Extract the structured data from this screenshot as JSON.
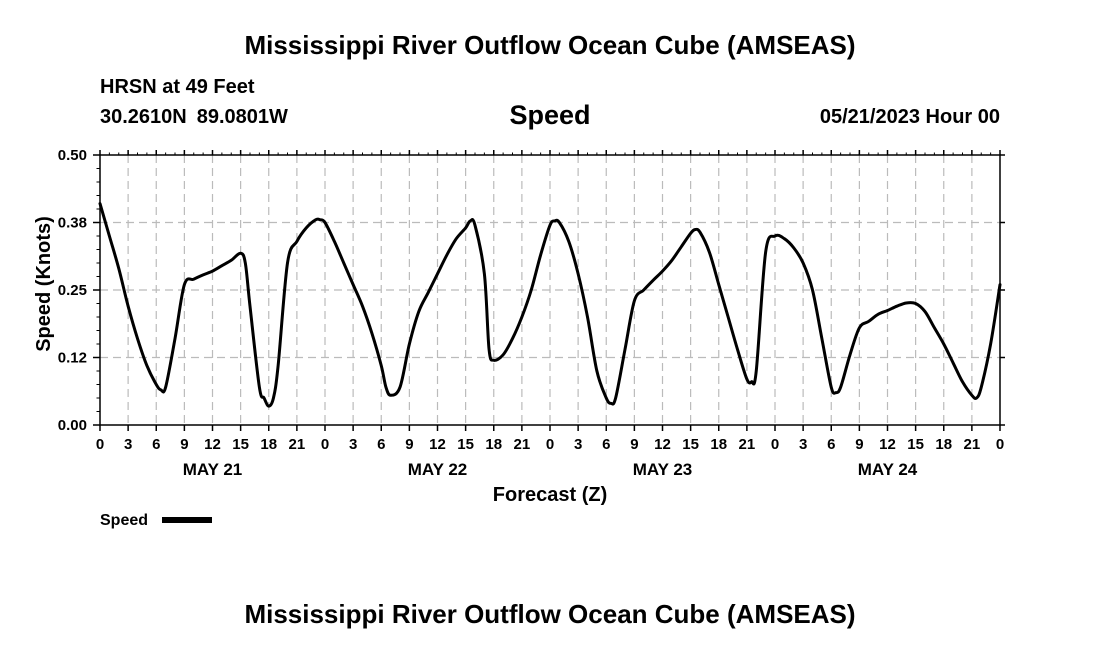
{
  "header": {
    "title": "Mississippi River Outflow Ocean Cube (AMSEAS)",
    "station": "HRSN at 49 Feet",
    "latitude": "30.2610N",
    "longitude": "89.0801W",
    "datetime": "05/21/2023 Hour 00"
  },
  "footer": {
    "title": "Mississippi River Outflow Ocean Cube (AMSEAS)"
  },
  "colors": {
    "line": "#000000",
    "grid": "#bbbbbb",
    "background": "#ffffff"
  },
  "chart_data": {
    "type": "line",
    "title": "Speed",
    "xlabel": "Forecast (Z)",
    "ylabel": "Speed (Knots)",
    "xlim": [
      0,
      96
    ],
    "ylim": [
      0,
      0.5
    ],
    "grid": true,
    "legend": {
      "position": "bottom-left",
      "entries": [
        "Speed"
      ]
    },
    "y_ticks": [
      {
        "value": 0.0,
        "label": "0.00"
      },
      {
        "value": 0.125,
        "label": "0.12"
      },
      {
        "value": 0.25,
        "label": "0.25"
      },
      {
        "value": 0.375,
        "label": "0.38"
      },
      {
        "value": 0.5,
        "label": "0.50"
      }
    ],
    "x_ticks": [
      {
        "value": 0,
        "label": "0"
      },
      {
        "value": 3,
        "label": "3"
      },
      {
        "value": 6,
        "label": "6"
      },
      {
        "value": 9,
        "label": "9"
      },
      {
        "value": 12,
        "label": "12"
      },
      {
        "value": 15,
        "label": "15"
      },
      {
        "value": 18,
        "label": "18"
      },
      {
        "value": 21,
        "label": "21"
      },
      {
        "value": 24,
        "label": "0"
      },
      {
        "value": 27,
        "label": "3"
      },
      {
        "value": 30,
        "label": "6"
      },
      {
        "value": 33,
        "label": "9"
      },
      {
        "value": 36,
        "label": "12"
      },
      {
        "value": 39,
        "label": "15"
      },
      {
        "value": 42,
        "label": "18"
      },
      {
        "value": 45,
        "label": "21"
      },
      {
        "value": 48,
        "label": "0"
      },
      {
        "value": 51,
        "label": "3"
      },
      {
        "value": 54,
        "label": "6"
      },
      {
        "value": 57,
        "label": "9"
      },
      {
        "value": 60,
        "label": "12"
      },
      {
        "value": 63,
        "label": "15"
      },
      {
        "value": 66,
        "label": "18"
      },
      {
        "value": 69,
        "label": "21"
      },
      {
        "value": 72,
        "label": "0"
      },
      {
        "value": 75,
        "label": "3"
      },
      {
        "value": 78,
        "label": "6"
      },
      {
        "value": 81,
        "label": "9"
      },
      {
        "value": 84,
        "label": "12"
      },
      {
        "value": 87,
        "label": "15"
      },
      {
        "value": 90,
        "label": "18"
      },
      {
        "value": 93,
        "label": "21"
      },
      {
        "value": 96,
        "label": "0"
      }
    ],
    "day_labels": [
      {
        "value": 12,
        "label": "MAY 21"
      },
      {
        "value": 36,
        "label": "MAY 22"
      },
      {
        "value": 60,
        "label": "MAY 23"
      },
      {
        "value": 84,
        "label": "MAY 24"
      }
    ],
    "series": [
      {
        "name": "Speed",
        "x": [
          0,
          1,
          2,
          3,
          4,
          5,
          6,
          6.5,
          7,
          8,
          9,
          10,
          11,
          12,
          13,
          14,
          15,
          15.5,
          16,
          17,
          17.5,
          18,
          18.5,
          19,
          20,
          21,
          22,
          23,
          23.5,
          24,
          25,
          26,
          27,
          28,
          29,
          30,
          30.5,
          31,
          32,
          33,
          34,
          35,
          36,
          37,
          38,
          39,
          39.5,
          40,
          41,
          41.5,
          42,
          43,
          44,
          45,
          46,
          47,
          48,
          48.5,
          49,
          50,
          51,
          52,
          53,
          54,
          54.5,
          55,
          56,
          57,
          58,
          59,
          60,
          61,
          62,
          63,
          63.5,
          64,
          65,
          66,
          67,
          68,
          69,
          69.5,
          70,
          71,
          72,
          73,
          74,
          75,
          76,
          77,
          78,
          78.5,
          79,
          80,
          81,
          82,
          83,
          84,
          85,
          86,
          87,
          88,
          89,
          90,
          91,
          92,
          93,
          93.5,
          94,
          95,
          96
        ],
        "values": [
          0.41,
          0.35,
          0.29,
          0.22,
          0.16,
          0.11,
          0.075,
          0.065,
          0.07,
          0.16,
          0.26,
          0.27,
          0.278,
          0.285,
          0.295,
          0.305,
          0.318,
          0.3,
          0.22,
          0.07,
          0.05,
          0.035,
          0.05,
          0.11,
          0.3,
          0.34,
          0.365,
          0.38,
          0.38,
          0.375,
          0.34,
          0.3,
          0.26,
          0.22,
          0.17,
          0.11,
          0.07,
          0.055,
          0.07,
          0.15,
          0.21,
          0.245,
          0.28,
          0.315,
          0.345,
          0.365,
          0.378,
          0.37,
          0.28,
          0.14,
          0.12,
          0.13,
          0.16,
          0.2,
          0.25,
          0.315,
          0.37,
          0.378,
          0.375,
          0.34,
          0.28,
          0.2,
          0.1,
          0.05,
          0.04,
          0.05,
          0.14,
          0.23,
          0.25,
          0.268,
          0.285,
          0.305,
          0.33,
          0.355,
          0.362,
          0.357,
          0.32,
          0.26,
          0.2,
          0.14,
          0.085,
          0.08,
          0.1,
          0.32,
          0.35,
          0.345,
          0.328,
          0.3,
          0.25,
          0.16,
          0.07,
          0.06,
          0.07,
          0.13,
          0.18,
          0.192,
          0.205,
          0.212,
          0.22,
          0.226,
          0.225,
          0.21,
          0.18,
          0.15,
          0.115,
          0.08,
          0.055,
          0.05,
          0.07,
          0.15,
          0.26
        ]
      }
    ]
  }
}
